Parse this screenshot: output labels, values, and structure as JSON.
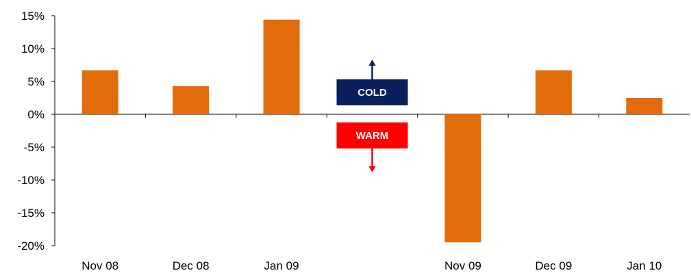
{
  "chart_data": {
    "type": "bar",
    "title": "",
    "xlabel": "",
    "ylabel": "",
    "categories": [
      "Nov 08",
      "Dec 08",
      "Jan 09",
      "",
      "Nov 09",
      "Dec 09",
      "Jan 10"
    ],
    "values": [
      6.7,
      4.3,
      14.4,
      null,
      -19.5,
      6.7,
      2.5
    ],
    "y_unit": "%",
    "ylim": [
      -20,
      15
    ],
    "yticks": [
      15,
      10,
      5,
      0,
      -5,
      -10,
      -15,
      -20
    ],
    "ytick_labels": [
      "15%",
      "10%",
      "5%",
      "0%",
      "-5%",
      "-10%",
      "-15%",
      "-20%"
    ],
    "grid": false,
    "legend": "none",
    "bar_color": "#E36C0A",
    "annotations": [
      {
        "label": "COLD",
        "direction": "up",
        "color": "#0A1F5C"
      },
      {
        "label": "WARM",
        "direction": "down",
        "color": "#FF0000"
      }
    ]
  }
}
